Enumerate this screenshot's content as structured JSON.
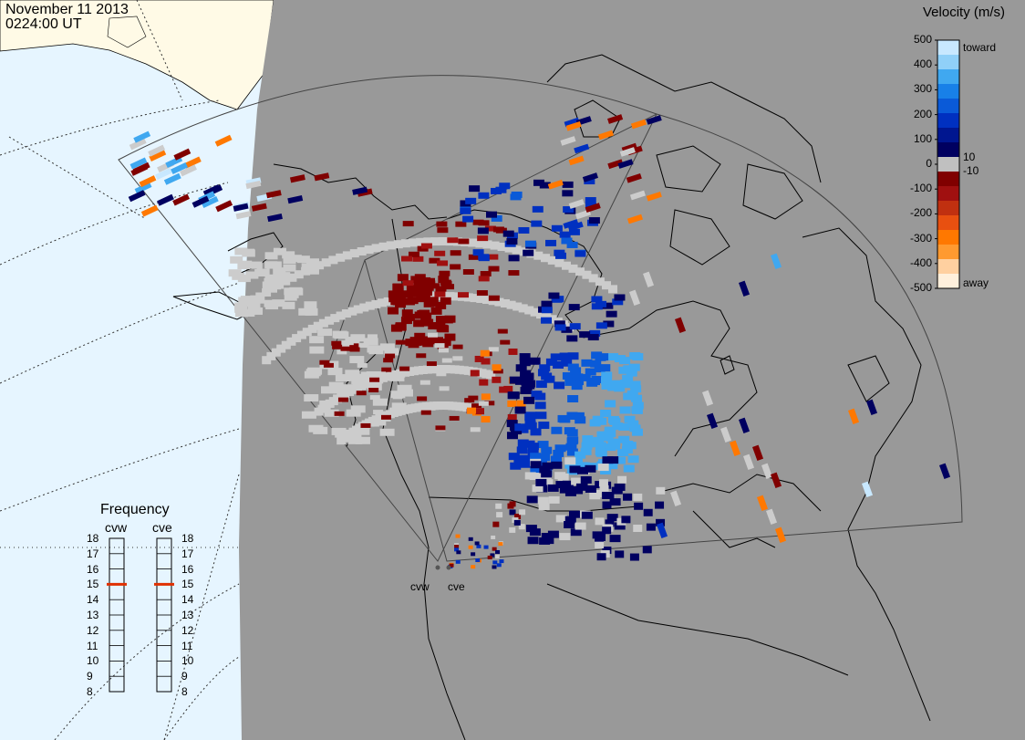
{
  "header": {
    "date": "November 11 2013",
    "time": "0224:00 UT"
  },
  "colorbar": {
    "title": "Velocity (m/s)",
    "ticks": [
      "500",
      "400",
      "300",
      "200",
      "100",
      "0",
      "-100",
      "-200",
      "-300",
      "-400",
      "-500"
    ],
    "inner_labels": [
      "10",
      "-10"
    ],
    "toward_label": "toward",
    "away_label": "away",
    "colors": [
      "#fff0dc",
      "#ffd0a0",
      "#ff9a30",
      "#ff7800",
      "#e85010",
      "#c03010",
      "#a01010",
      "#800000",
      "#c0c0c0",
      "#000060",
      "#001690",
      "#0030c0",
      "#0a5ad8",
      "#1880e8",
      "#40a8f0",
      "#90d0f8",
      "#c8e8ff"
    ]
  },
  "frequency": {
    "title": "Frequency",
    "columns": [
      "cvw",
      "cve"
    ],
    "levels": [
      "18",
      "17",
      "16",
      "15",
      "14",
      "13",
      "12",
      "11",
      "10",
      "9",
      "8"
    ],
    "cvw_mhz": 15,
    "cve_mhz": 15,
    "marker_color": "#e03000"
  },
  "sites": [
    "cvw",
    "cve"
  ],
  "map": {
    "ocean_color": "#e6f5ff",
    "land_color": "#fffae6",
    "night_color": "#999999",
    "fov_outline_color": "#444444",
    "ground_scatter_color": "#cccccc"
  }
}
